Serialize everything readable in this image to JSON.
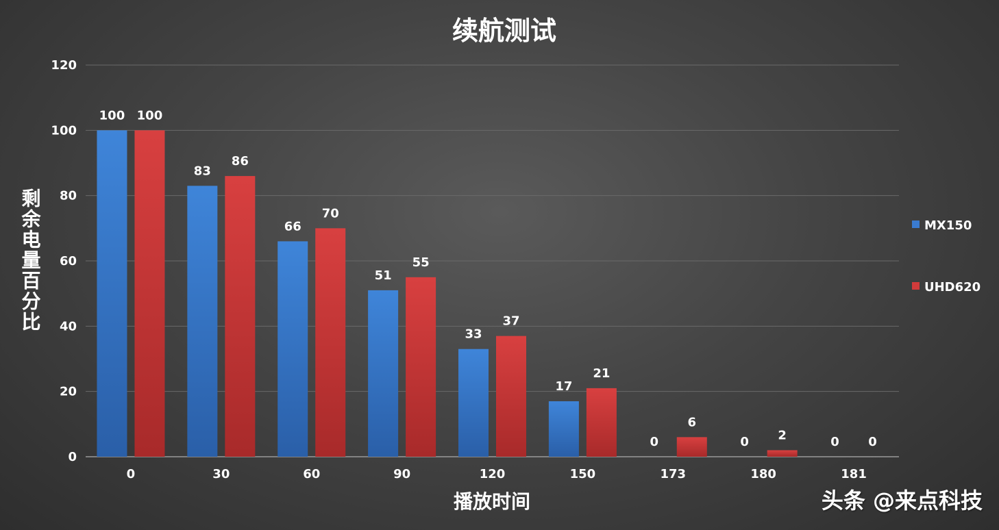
{
  "watermark": "头条 @来点科技",
  "chart_data": {
    "type": "bar",
    "title": "续航测试",
    "xlabel": "播放时间",
    "ylabel": "剩余电量百分比",
    "categories": [
      "0",
      "30",
      "60",
      "90",
      "120",
      "150",
      "173",
      "180",
      "181"
    ],
    "series": [
      {
        "name": "MX150",
        "color": "#3a7bd0",
        "values": [
          100,
          83,
          66,
          51,
          33,
          17,
          0,
          0,
          0
        ]
      },
      {
        "name": "UHD620",
        "color": "#d23b3b",
        "values": [
          100,
          86,
          70,
          55,
          37,
          21,
          6,
          2,
          0
        ]
      }
    ],
    "ylim": [
      0,
      120
    ],
    "yticks": [
      0,
      20,
      40,
      60,
      80,
      100,
      120
    ],
    "grid": true,
    "legend": "right"
  }
}
